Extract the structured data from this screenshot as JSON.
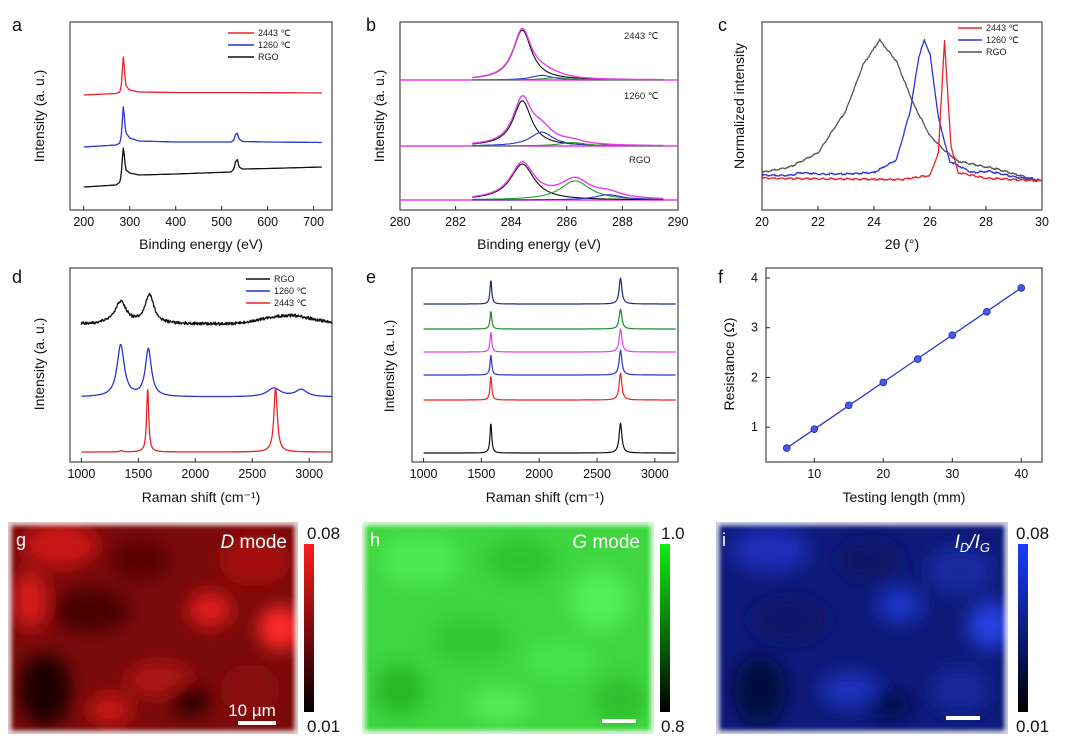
{
  "panels": {
    "a": "a",
    "b": "b",
    "c": "c",
    "d": "d",
    "e": "e",
    "f": "f",
    "g": "g",
    "h": "h",
    "i": "i"
  },
  "colors": {
    "c2443": "#e8232a",
    "c1260": "#2b35d0",
    "crgo": "#111111",
    "fit_envelope": "#e23ee8",
    "fit_c_o": "#2b35d0",
    "fit_c_oh": "#2a9a2a",
    "e_series": [
      "#1d2a7a",
      "#1f8a2a",
      "#e23ee8",
      "#2b35d0",
      "#e8232a",
      "#111111"
    ]
  },
  "chart_data": [
    {
      "id": "a",
      "type": "line",
      "xlabel": "Binding energy (eV)",
      "ylabel": "Intensity (a. u.)",
      "xlim": [
        170,
        740
      ],
      "xticks": [
        200,
        300,
        400,
        500,
        600,
        700
      ],
      "legend_position": "top-right",
      "series": [
        {
          "name": "2443 ℃",
          "color_key": "c2443",
          "offset": 2,
          "points": [
            [
              200,
              0.0
            ],
            [
              270,
              0.03
            ],
            [
              279,
              0.06
            ],
            [
              283,
              0.3
            ],
            [
              285,
              0.72
            ],
            [
              287,
              0.8
            ],
            [
              289,
              0.38
            ],
            [
              292,
              0.18
            ],
            [
              300,
              0.1
            ],
            [
              320,
              0.06
            ],
            [
              400,
              0.05
            ],
            [
              530,
              0.05
            ],
            [
              720,
              0.04
            ]
          ]
        },
        {
          "name": "1260 ℃",
          "color_key": "c1260",
          "offset": 1,
          "points": [
            [
              200,
              0.0
            ],
            [
              270,
              0.04
            ],
            [
              279,
              0.08
            ],
            [
              283,
              0.35
            ],
            [
              285,
              0.76
            ],
            [
              287,
              0.85
            ],
            [
              289,
              0.45
            ],
            [
              292,
              0.28
            ],
            [
              300,
              0.18
            ],
            [
              320,
              0.12
            ],
            [
              400,
              0.1
            ],
            [
              520,
              0.1
            ],
            [
              526,
              0.13
            ],
            [
              530,
              0.25
            ],
            [
              534,
              0.28
            ],
            [
              538,
              0.16
            ],
            [
              545,
              0.11
            ],
            [
              600,
              0.1
            ],
            [
              720,
              0.09
            ]
          ]
        },
        {
          "name": "RGO",
          "color_key": "crgo",
          "offset": 0,
          "points": [
            [
              200,
              0.0
            ],
            [
              270,
              0.04
            ],
            [
              279,
              0.1
            ],
            [
              283,
              0.4
            ],
            [
              285,
              0.76
            ],
            [
              287,
              0.8
            ],
            [
              289,
              0.5
            ],
            [
              292,
              0.34
            ],
            [
              300,
              0.28
            ],
            [
              320,
              0.24
            ],
            [
              400,
              0.26
            ],
            [
              520,
              0.3
            ],
            [
              526,
              0.35
            ],
            [
              530,
              0.5
            ],
            [
              534,
              0.55
            ],
            [
              538,
              0.4
            ],
            [
              545,
              0.36
            ],
            [
              600,
              0.37
            ],
            [
              720,
              0.4
            ]
          ]
        }
      ]
    },
    {
      "id": "b",
      "type": "line",
      "xlabel": "Binding energy (eV)",
      "ylabel": "Intensity (a. u.)",
      "xlim": [
        280,
        290
      ],
      "xticks": [
        280,
        282,
        284,
        286,
        288,
        290
      ],
      "annotations": [
        "2443 ℃",
        "1260 ℃",
        "RGO"
      ],
      "subplots": [
        {
          "label": "2443 ℃",
          "peaks": [
            {
              "center": 284.4,
              "height": 0.86,
              "width": 0.4,
              "color_key": "crgo"
            },
            {
              "center": 285.1,
              "height": 0.08,
              "width": 0.45,
              "color_key": "fit_c_o"
            },
            {
              "center": 285.6,
              "height": 0.04,
              "width": 0.5,
              "color_key": "fit_c_oh"
            }
          ]
        },
        {
          "label": "1260 ℃",
          "peaks": [
            {
              "center": 284.4,
              "height": 0.78,
              "width": 0.4,
              "color_key": "crgo"
            },
            {
              "center": 285.1,
              "height": 0.24,
              "width": 0.5,
              "color_key": "fit_c_o"
            },
            {
              "center": 286.2,
              "height": 0.06,
              "width": 0.55,
              "color_key": "fit_c_oh"
            }
          ]
        },
        {
          "label": "RGO",
          "peaks": [
            {
              "center": 284.4,
              "height": 0.62,
              "width": 0.52,
              "color_key": "crgo"
            },
            {
              "center": 286.3,
              "height": 0.33,
              "width": 0.65,
              "color_key": "fit_c_oh"
            },
            {
              "center": 287.5,
              "height": 0.09,
              "width": 0.6,
              "color_key": "fit_c_o"
            }
          ]
        }
      ]
    },
    {
      "id": "c",
      "type": "line",
      "xlabel": "2θ (°)",
      "ylabel": "Normalized intensity",
      "xlim": [
        20,
        30
      ],
      "xticks": [
        20,
        22,
        24,
        26,
        28,
        30
      ],
      "legend_position": "top-right",
      "series": [
        {
          "name": "2443 ℃",
          "color_key": "c2443",
          "points": [
            [
              20,
              0.02
            ],
            [
              25,
              0.01
            ],
            [
              26.0,
              0.04
            ],
            [
              26.3,
              0.2
            ],
            [
              26.45,
              0.75
            ],
            [
              26.52,
              1.0
            ],
            [
              26.6,
              0.72
            ],
            [
              26.75,
              0.25
            ],
            [
              27.0,
              0.06
            ],
            [
              28,
              0.02
            ],
            [
              30,
              0.0
            ]
          ]
        },
        {
          "name": "1260 ℃",
          "color_key": "c1260",
          "points": [
            [
              20,
              0.04
            ],
            [
              21,
              0.04
            ],
            [
              21.4,
              0.06
            ],
            [
              22,
              0.05
            ],
            [
              23,
              0.05
            ],
            [
              24,
              0.06
            ],
            [
              24.8,
              0.15
            ],
            [
              25.3,
              0.5
            ],
            [
              25.6,
              0.88
            ],
            [
              25.8,
              1.0
            ],
            [
              26.0,
              0.9
            ],
            [
              26.3,
              0.45
            ],
            [
              26.7,
              0.14
            ],
            [
              27.5,
              0.06
            ],
            [
              28.1,
              0.07
            ],
            [
              29,
              0.03
            ],
            [
              30,
              0.0
            ]
          ]
        },
        {
          "name": "RGO",
          "color_key": "crgo",
          "points": [
            [
              20,
              0.06
            ],
            [
              21,
              0.1
            ],
            [
              22,
              0.2
            ],
            [
              23,
              0.5
            ],
            [
              23.6,
              0.82
            ],
            [
              24.2,
              1.0
            ],
            [
              24.8,
              0.85
            ],
            [
              25.4,
              0.55
            ],
            [
              26,
              0.32
            ],
            [
              26.5,
              0.22
            ],
            [
              27,
              0.14
            ],
            [
              28,
              0.1
            ],
            [
              28.3,
              0.09
            ],
            [
              29,
              0.05
            ],
            [
              30,
              0.0
            ]
          ]
        }
      ]
    },
    {
      "id": "d",
      "type": "line",
      "xlabel": "Raman shift (cm⁻¹)",
      "ylabel": "Intensity (a. u.)",
      "xlim": [
        900,
        3200
      ],
      "xticks": [
        1000,
        1500,
        2000,
        2500,
        3000
      ],
      "legend_position": "top-right",
      "series": [
        {
          "name": "RGO",
          "color_key": "crgo",
          "offset": 2
        },
        {
          "name": "1260 ℃",
          "color_key": "c1260",
          "offset": 1
        },
        {
          "name": "2443 ℃",
          "color_key": "c2443",
          "offset": 0
        }
      ]
    },
    {
      "id": "e",
      "type": "line",
      "xlabel": "Raman shift (cm⁻¹)",
      "ylabel": "Intensity (a. u.)",
      "xlim": [
        900,
        3200
      ],
      "xticks": [
        1000,
        1500,
        2000,
        2500,
        3000
      ],
      "n_series": 6
    },
    {
      "id": "f",
      "type": "scatter",
      "xlabel": "Testing length (mm)",
      "ylabel": "Resistance (Ω)",
      "xlim": [
        3,
        43
      ],
      "ylim": [
        0.3,
        4.2
      ],
      "xticks": [
        10,
        20,
        30,
        40
      ],
      "yticks": [
        1,
        2,
        3,
        4
      ],
      "x": [
        6,
        10,
        15,
        20,
        25,
        30,
        35,
        40
      ],
      "y": [
        0.58,
        0.96,
        1.44,
        1.9,
        2.37,
        2.85,
        3.32,
        3.8
      ],
      "fit_line": true
    }
  ],
  "maps": [
    {
      "id": "g",
      "title_italic": "D",
      "title_rest": " mode",
      "max": "0.08",
      "min": "0.01",
      "scalebar": "10 µm",
      "color": "#ff2222"
    },
    {
      "id": "h",
      "title_italic": "G",
      "title_rest": " mode",
      "max": "1.0",
      "min": "0.8",
      "scalebar": "",
      "color": "#22ee22"
    },
    {
      "id": "i",
      "title_sub": true,
      "max": "0.08",
      "min": "0.01",
      "scalebar": "",
      "color": "#2244ff"
    }
  ]
}
